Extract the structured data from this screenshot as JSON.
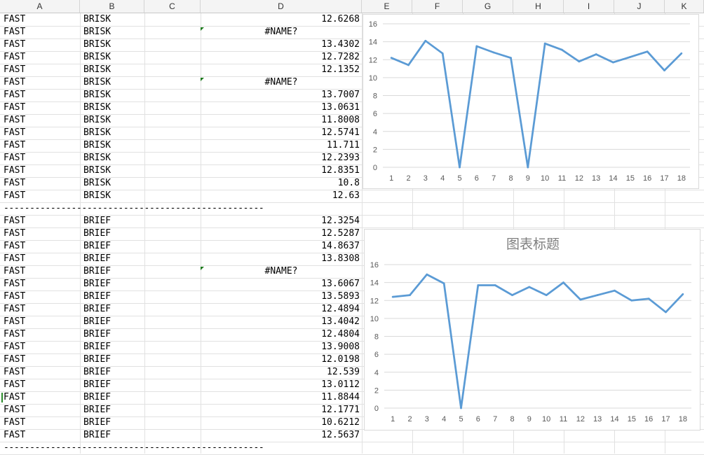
{
  "columns": [
    "A",
    "B",
    "C",
    "D",
    "E",
    "F",
    "G",
    "H",
    "I",
    "J",
    "K"
  ],
  "rows": [
    {
      "a": "FAST",
      "b": "BRISK",
      "d": "12.6268"
    },
    {
      "a": "FAST",
      "b": "BRISK",
      "d": "#NAME?",
      "error": true
    },
    {
      "a": "FAST",
      "b": "BRISK",
      "d": "13.4302"
    },
    {
      "a": "FAST",
      "b": "BRISK",
      "d": "12.7282"
    },
    {
      "a": "FAST",
      "b": "BRISK",
      "d": "12.1352"
    },
    {
      "a": "FAST",
      "b": "BRISK",
      "d": "#NAME?",
      "error": true
    },
    {
      "a": "FAST",
      "b": "BRISK",
      "d": "13.7007"
    },
    {
      "a": "FAST",
      "b": "BRISK",
      "d": "13.0631"
    },
    {
      "a": "FAST",
      "b": "BRISK",
      "d": "11.8008"
    },
    {
      "a": "FAST",
      "b": "BRISK",
      "d": "12.5741"
    },
    {
      "a": "FAST",
      "b": "BRISK",
      "d": "11.711"
    },
    {
      "a": "FAST",
      "b": "BRISK",
      "d": "12.2393"
    },
    {
      "a": "FAST",
      "b": "BRISK",
      "d": "12.8351"
    },
    {
      "a": "FAST",
      "b": "BRISK",
      "d": "10.8"
    },
    {
      "a": "FAST",
      "b": "BRISK",
      "d": "12.63"
    },
    {
      "separator": "--------------------------------------------------"
    },
    {
      "a": "FAST",
      "b": "BRIEF",
      "d": "12.3254"
    },
    {
      "a": "FAST",
      "b": "BRIEF",
      "d": "12.5287"
    },
    {
      "a": "FAST",
      "b": "BRIEF",
      "d": "14.8637"
    },
    {
      "a": "FAST",
      "b": "BRIEF",
      "d": "13.8308"
    },
    {
      "a": "FAST",
      "b": "BRIEF",
      "d": "#NAME?",
      "error": true
    },
    {
      "a": "FAST",
      "b": "BRIEF",
      "d": "13.6067"
    },
    {
      "a": "FAST",
      "b": "BRIEF",
      "d": "13.5893"
    },
    {
      "a": "FAST",
      "b": "BRIEF",
      "d": "12.4894"
    },
    {
      "a": "FAST",
      "b": "BRIEF",
      "d": "13.4042"
    },
    {
      "a": "FAST",
      "b": "BRIEF",
      "d": "12.4804"
    },
    {
      "a": "FAST",
      "b": "BRIEF",
      "d": "13.9008"
    },
    {
      "a": "FAST",
      "b": "BRIEF",
      "d": "12.0198"
    },
    {
      "a": "FAST",
      "b": "BRIEF",
      "d": "12.539"
    },
    {
      "a": "FAST",
      "b": "BRIEF",
      "d": "13.0112"
    },
    {
      "a": "FAST",
      "b": "BRIEF",
      "d": "11.8844"
    },
    {
      "a": "FAST",
      "b": "BRIEF",
      "d": "12.1771"
    },
    {
      "a": "FAST",
      "b": "BRIEF",
      "d": "10.6212"
    },
    {
      "a": "FAST",
      "b": "BRIEF",
      "d": "12.5637"
    },
    {
      "separator": "--------------------------------------------------"
    }
  ],
  "colors": {
    "line": "#5b9bd5",
    "grid": "#d9d9d9",
    "axis_text": "#595959",
    "title": "#7f7f7f"
  },
  "chart_data": [
    {
      "type": "line",
      "title": "",
      "categories": [
        "1",
        "2",
        "3",
        "4",
        "5",
        "6",
        "7",
        "8",
        "9",
        "10",
        "11",
        "12",
        "13",
        "14",
        "15",
        "16",
        "17",
        "18"
      ],
      "series": [
        {
          "values": [
            12.2,
            11.4,
            14.1,
            12.7,
            0,
            13.5,
            12.8,
            12.2,
            0,
            13.8,
            13.1,
            11.8,
            12.6,
            11.7,
            12.3,
            12.9,
            10.8,
            12.7
          ]
        }
      ],
      "ylim": [
        0,
        16
      ],
      "yticks": [
        "0",
        "2",
        "4",
        "6",
        "8",
        "10",
        "12",
        "14",
        "16"
      ],
      "grid": true
    },
    {
      "type": "line",
      "title": "图表标题",
      "categories": [
        "1",
        "2",
        "3",
        "4",
        "5",
        "6",
        "7",
        "8",
        "9",
        "10",
        "11",
        "12",
        "13",
        "14",
        "15",
        "16",
        "17",
        "18"
      ],
      "series": [
        {
          "values": [
            12.4,
            12.6,
            14.9,
            13.9,
            0,
            13.7,
            13.7,
            12.6,
            13.5,
            12.6,
            14.0,
            12.1,
            12.6,
            13.1,
            12.0,
            12.2,
            10.7,
            12.7
          ]
        }
      ],
      "ylim": [
        0,
        16
      ],
      "yticks": [
        "0",
        "2",
        "4",
        "6",
        "8",
        "10",
        "12",
        "14",
        "16"
      ],
      "grid": true
    }
  ]
}
